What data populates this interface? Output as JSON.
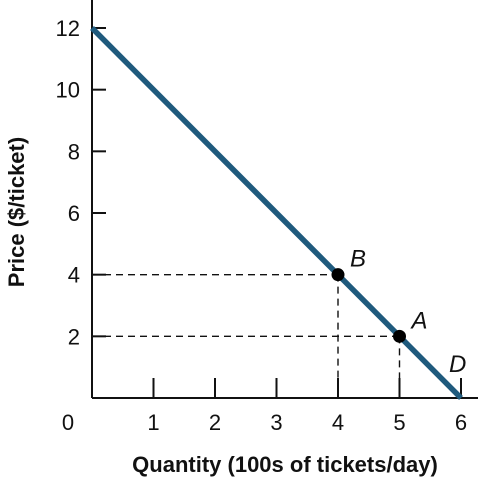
{
  "chart_data": {
    "type": "line",
    "xlabel": "Quantity (100s of tickets/day)",
    "ylabel": "Price ($/ticket)",
    "xlim": [
      0,
      6
    ],
    "ylim": [
      0,
      12
    ],
    "x_ticks": [
      1,
      2,
      3,
      4,
      5,
      6
    ],
    "y_ticks": [
      2,
      4,
      6,
      8,
      10,
      12
    ],
    "origin_label": "0",
    "series": [
      {
        "x": [
          0,
          6
        ],
        "y": [
          12,
          0
        ],
        "color": "#1f5a7d"
      }
    ],
    "points": [
      {
        "label": "B",
        "x": 4,
        "y": 4,
        "dashed_guides": true
      },
      {
        "label": "A",
        "x": 5,
        "y": 2,
        "dashed_guides": true
      },
      {
        "label": "D",
        "x": 6,
        "y": 0,
        "dashed_guides": false
      }
    ],
    "grid": false,
    "legend": "none"
  }
}
